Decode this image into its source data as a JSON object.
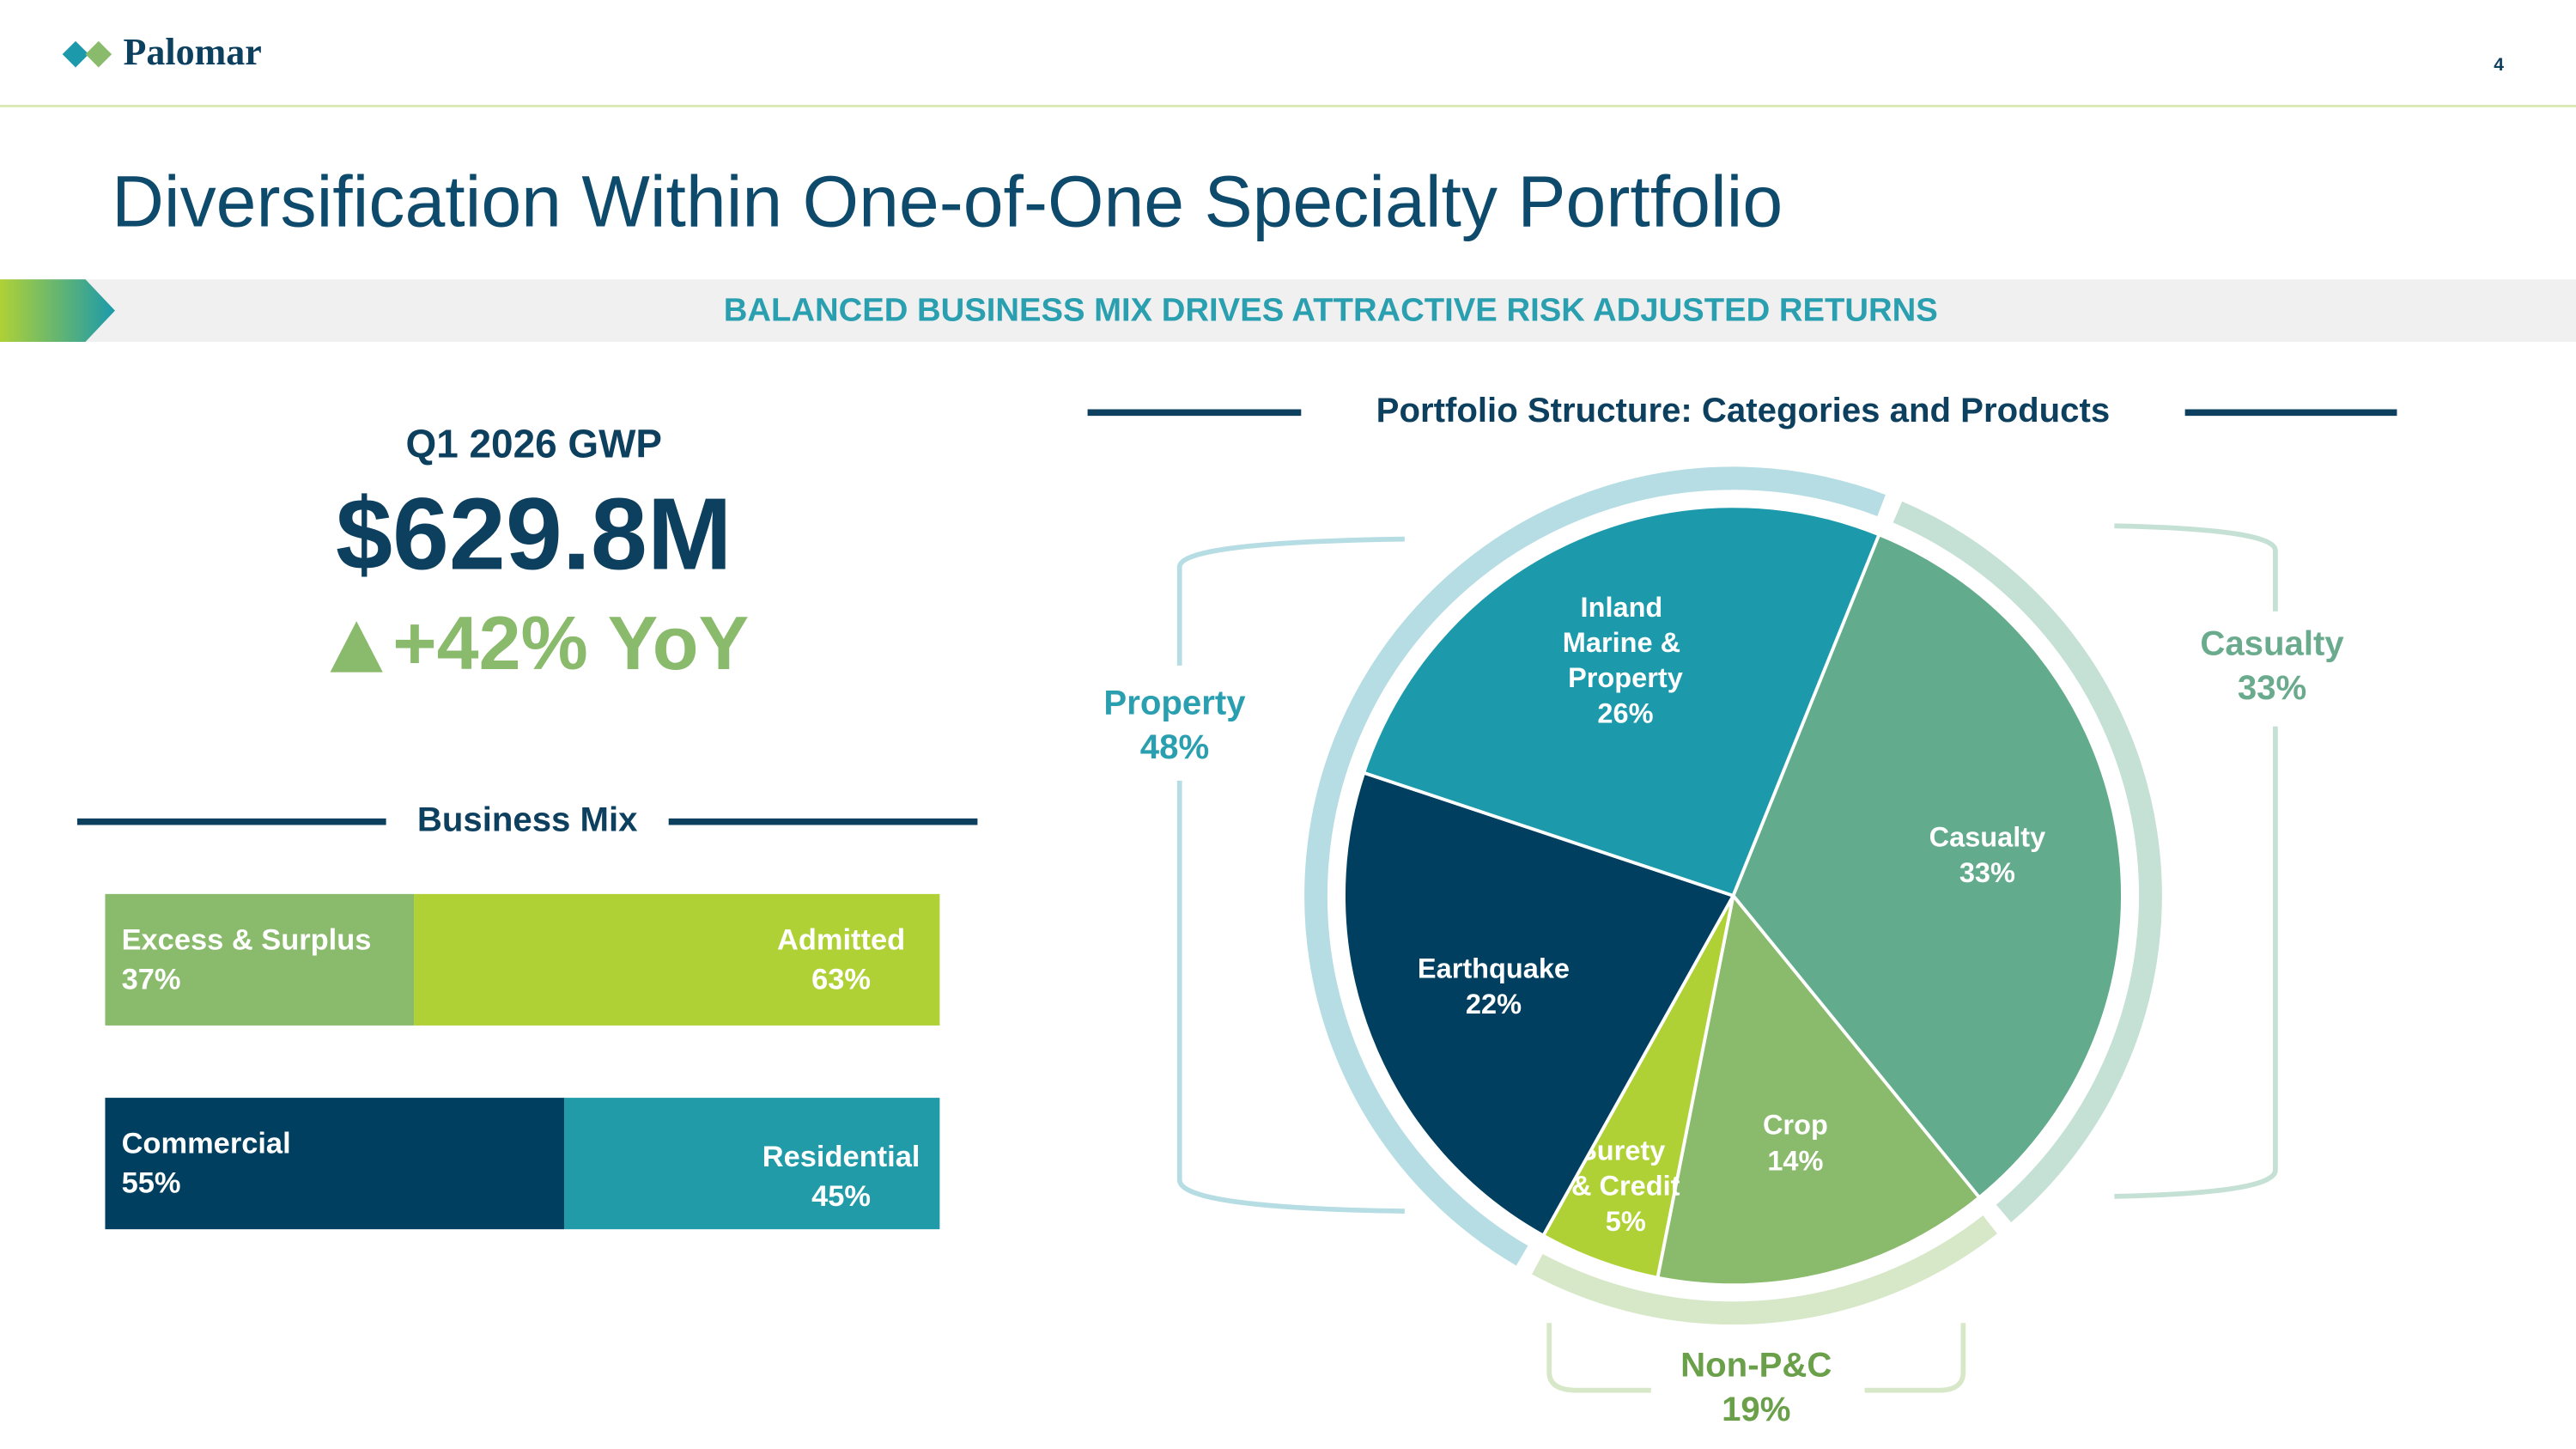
{
  "header": {
    "logo": "Palomar",
    "page_number": "4"
  },
  "title": "Diversification Within One-of-One Specialty Portfolio",
  "banner": "BALANCED BUSINESS MIX DRIVES ATTRACTIVE RISK ADJUSTED RETURNS",
  "gwp": {
    "label": "Q1 2026 GWP",
    "value": "$629.8M",
    "growth": "+42% YoY"
  },
  "chart_data": [
    {
      "type": "stacked-bar",
      "title": "Business Mix",
      "xlim": [
        0,
        100
      ],
      "series": [
        {
          "name": "Excess & Surplus",
          "color": "#8aba6b",
          "values": [
            37
          ],
          "value_labels": [
            "37%"
          ]
        },
        {
          "name": "Admitted",
          "color": "#afd136",
          "values": [
            63
          ],
          "value_labels": [
            "63%"
          ]
        }
      ]
    },
    {
      "type": "stacked-bar",
      "xlim": [
        0,
        100
      ],
      "series": [
        {
          "name": "Commercial",
          "color": "#003f5f",
          "values": [
            55
          ],
          "value_labels": [
            "55%"
          ]
        },
        {
          "name": "Residential",
          "color": "#229ba9",
          "values": [
            45
          ],
          "value_labels": [
            "45%"
          ]
        }
      ]
    },
    {
      "type": "pie",
      "title": "Portfolio Structure: Categories and Products",
      "start_angle": 22,
      "categories": [
        "Casualty",
        "Crop",
        "Surety\n& Credit",
        "Earthquake",
        "Inland\nMarine &\nProperty"
      ],
      "values": [
        33,
        14,
        5,
        22,
        26
      ],
      "value_labels": [
        "33%",
        "14%",
        "5%",
        "22%",
        "26%"
      ],
      "colors": [
        "#62ab8c",
        "#8aba6b",
        "#afd136",
        "#003f5f",
        "#1c9aab"
      ],
      "groups": [
        {
          "name": "Casualty",
          "value": 33,
          "value_label": "33%",
          "color": "#c5e0d5",
          "label_color": "#6aab8e"
        },
        {
          "name": "Non-P&C",
          "value": 19,
          "value_label": "19%",
          "color": "#d6e8c7",
          "label_color": "#6aa04a"
        },
        {
          "name": "Property",
          "value": 48,
          "value_label": "48%",
          "color": "#b5dde3",
          "label_color": "#2a9fb0"
        }
      ]
    }
  ]
}
